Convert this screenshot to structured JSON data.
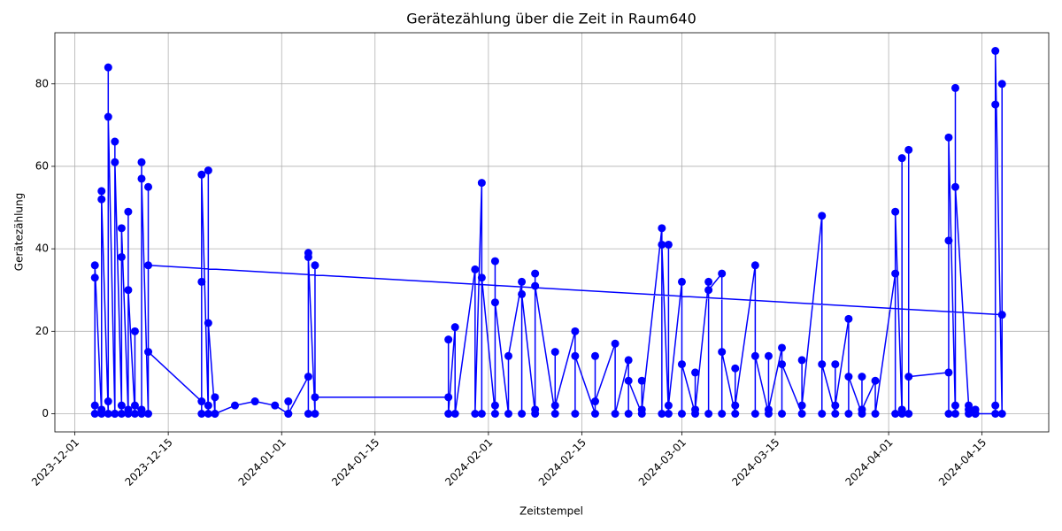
{
  "chart_data": {
    "type": "line",
    "title": "Gerätezählung über die Zeit in Raum640",
    "xlabel": "Zeitstempel",
    "ylabel": "Gerätezählung",
    "color": "#0000ff",
    "grid": true,
    "xlim": [
      "2023-11-28",
      "2024-04-25"
    ],
    "xticks": [
      "2023-12-01",
      "2023-12-15",
      "2024-01-01",
      "2024-01-15",
      "2024-02-01",
      "2024-02-15",
      "2024-03-01",
      "2024-03-15",
      "2024-04-01",
      "2024-04-15"
    ],
    "ylim": [
      -4.4,
      92.4
    ],
    "yticks": [
      0,
      20,
      40,
      60,
      80
    ],
    "x": [
      "2023-12-04",
      "2023-12-04",
      "2023-12-04",
      "2023-12-04",
      "2023-12-05",
      "2023-12-05",
      "2023-12-05",
      "2023-12-05",
      "2023-12-06",
      "2023-12-06",
      "2023-12-06",
      "2023-12-06",
      "2023-12-07",
      "2023-12-07",
      "2023-12-07",
      "2023-12-07",
      "2023-12-08",
      "2023-12-08",
      "2023-12-08",
      "2023-12-08",
      "2023-12-09",
      "2023-12-09",
      "2023-12-09",
      "2023-12-09",
      "2023-12-10",
      "2023-12-10",
      "2023-12-10",
      "2023-12-11",
      "2023-12-11",
      "2023-12-11",
      "2023-12-11",
      "2023-12-12",
      "2023-12-12",
      "2023-12-12",
      "2023-12-20",
      "2023-12-20",
      "2023-12-20",
      "2023-12-20",
      "2023-12-21",
      "2023-12-21",
      "2023-12-21",
      "2023-12-21",
      "2023-12-22",
      "2023-12-22",
      "2023-12-22",
      "2023-12-25",
      "2023-12-28",
      "2023-12-31",
      "2024-01-02",
      "2024-01-02",
      "2024-01-02",
      "2024-01-05",
      "2024-01-05",
      "2024-01-05",
      "2024-01-05",
      "2024-01-06",
      "2024-01-06",
      "2024-01-06",
      "2024-01-26",
      "2024-01-26",
      "2024-01-26",
      "2024-01-27",
      "2024-01-27",
      "2024-01-30",
      "2024-01-30",
      "2024-01-31",
      "2024-01-31",
      "2024-01-31",
      "2024-02-02",
      "2024-02-02",
      "2024-02-02",
      "2024-02-02",
      "2024-02-04",
      "2024-02-04",
      "2024-02-06",
      "2024-02-06",
      "2024-02-06",
      "2024-02-08",
      "2024-02-08",
      "2024-02-08",
      "2024-02-08",
      "2024-02-11",
      "2024-02-11",
      "2024-02-11",
      "2024-02-14",
      "2024-02-14",
      "2024-02-14",
      "2024-02-17",
      "2024-02-17",
      "2024-02-17",
      "2024-02-20",
      "2024-02-20",
      "2024-02-22",
      "2024-02-22",
      "2024-02-22",
      "2024-02-24",
      "2024-02-24",
      "2024-02-24",
      "2024-02-27",
      "2024-02-27",
      "2024-02-27",
      "2024-02-28",
      "2024-02-28",
      "2024-02-28",
      "2024-03-01",
      "2024-03-01",
      "2024-03-01",
      "2024-03-03",
      "2024-03-03",
      "2024-03-03",
      "2024-03-05",
      "2024-03-05",
      "2024-03-05",
      "2024-03-07",
      "2024-03-07",
      "2024-03-07",
      "2024-03-09",
      "2024-03-09",
      "2024-03-09",
      "2024-03-12",
      "2024-03-12",
      "2024-03-12",
      "2024-03-14",
      "2024-03-14",
      "2024-03-14",
      "2024-03-16",
      "2024-03-16",
      "2024-03-16",
      "2024-03-19",
      "2024-03-19",
      "2024-03-19",
      "2024-03-22",
      "2024-03-22",
      "2024-03-22",
      "2024-03-24",
      "2024-03-24",
      "2024-03-24",
      "2024-03-26",
      "2024-03-26",
      "2024-03-26",
      "2024-03-28",
      "2024-03-28",
      "2024-03-28",
      "2024-03-30",
      "2024-03-30",
      "2024-04-02",
      "2024-04-02",
      "2024-04-02",
      "2024-04-03",
      "2024-04-03",
      "2024-04-03",
      "2024-04-04",
      "2024-04-04",
      "2024-04-04",
      "2024-04-10",
      "2024-04-10",
      "2024-04-10",
      "2024-04-10",
      "2024-04-11",
      "2024-04-11",
      "2024-04-11",
      "2024-04-11",
      "2024-04-13",
      "2024-04-13",
      "2024-04-13",
      "2024-04-14",
      "2024-04-14",
      "2024-04-14",
      "2024-04-17",
      "2024-04-17",
      "2024-04-17",
      "2024-04-17",
      "2024-04-18",
      "2024-04-18",
      "2024-04-18",
      "2023-12-12"
    ],
    "values": [
      0,
      33,
      2,
      36,
      0,
      54,
      1,
      52,
      0,
      84,
      3,
      72,
      0,
      66,
      0,
      61,
      2,
      38,
      0,
      45,
      0,
      49,
      1,
      30,
      0,
      20,
      2,
      0,
      61,
      1,
      57,
      0,
      55,
      15,
      3,
      32,
      0,
      58,
      0,
      59,
      2,
      22,
      0,
      4,
      0,
      2,
      3,
      2,
      0,
      3,
      0,
      9,
      39,
      0,
      38,
      0,
      36,
      4,
      4,
      18,
      0,
      21,
      0,
      35,
      0,
      56,
      0,
      33,
      0,
      37,
      2,
      27,
      0,
      14,
      32,
      0,
      29,
      0,
      34,
      1,
      31,
      0,
      15,
      2,
      20,
      0,
      14,
      0,
      14,
      3,
      17,
      0,
      13,
      0,
      8,
      0,
      8,
      1,
      45,
      0,
      41,
      0,
      41,
      2,
      32,
      0,
      12,
      0,
      10,
      1,
      32,
      0,
      30,
      34,
      0,
      15,
      0,
      11,
      2,
      36,
      0,
      14,
      0,
      14,
      1,
      16,
      0,
      12,
      0,
      13,
      2,
      48,
      0,
      12,
      0,
      12,
      2,
      23,
      0,
      9,
      0,
      9,
      1,
      8,
      0,
      34,
      0,
      49,
      0,
      62,
      1,
      0,
      64,
      9,
      10,
      42,
      0,
      67,
      0,
      79,
      2,
      55,
      2,
      0,
      1,
      0,
      1,
      0,
      0,
      75,
      2,
      88,
      0,
      80,
      24,
      36
    ]
  }
}
